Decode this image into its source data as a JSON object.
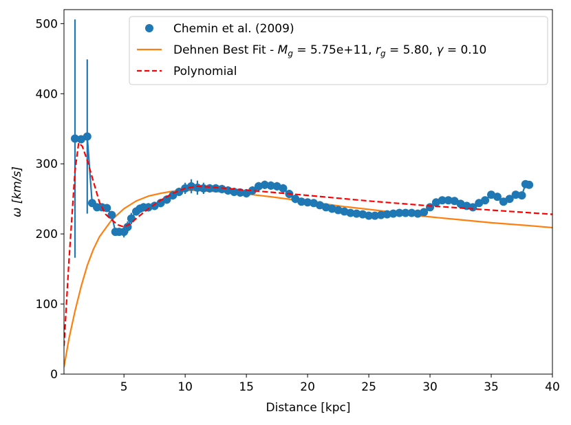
{
  "chart_data": {
    "type": "line",
    "xlabel": "Distance [kpc]",
    "ylabel_symbol": "ω",
    "ylabel_unit": "[km/s]",
    "xlim": [
      0.1,
      40
    ],
    "ylim": [
      0,
      520
    ],
    "xticks": [
      5,
      10,
      15,
      20,
      25,
      30,
      35,
      40
    ],
    "yticks": [
      0,
      100,
      200,
      300,
      400,
      500
    ],
    "legend_position": "top-right",
    "legend": [
      {
        "label": "Chemin et al. (2009)",
        "kind": "marker",
        "color": "#1f77b4"
      },
      {
        "label_prefix": "Dehnen Best Fit - ",
        "label_math": [
          {
            "text": "M",
            "sub": "g",
            "value": " = 5.75e+11"
          },
          {
            "text": "r",
            "sub": "g",
            "value": " = 5.80"
          },
          {
            "text": "γ",
            "sub": "",
            "value": " = 0.10"
          }
        ],
        "kind": "line",
        "color": "#ff7f0e"
      },
      {
        "label": "Polynomial",
        "kind": "dashed",
        "color": "#ff0000"
      }
    ],
    "series": [
      {
        "name": "Chemin et al. (2009)",
        "color": "#1f77b4",
        "x": [
          1.0,
          1.5,
          2.0,
          2.4,
          2.8,
          3.2,
          3.6,
          4.0,
          4.3,
          4.6,
          5.0,
          5.3,
          5.6,
          6.0,
          6.3,
          6.6,
          7.0,
          7.5,
          8.0,
          8.5,
          9.0,
          9.5,
          10.0,
          10.5,
          11.0,
          11.5,
          12.0,
          12.5,
          13.0,
          13.5,
          14.0,
          14.5,
          15.0,
          15.5,
          16.0,
          16.5,
          17.0,
          17.5,
          18.0,
          18.5,
          19.0,
          19.5,
          20.0,
          20.5,
          21.0,
          21.5,
          22.0,
          22.5,
          23.0,
          23.5,
          24.0,
          24.5,
          25.0,
          25.5,
          26.0,
          26.5,
          27.0,
          27.5,
          28.0,
          28.5,
          29.0,
          29.5,
          30.0,
          30.5,
          31.0,
          31.5,
          32.0,
          32.5,
          33.0,
          33.5,
          34.0,
          34.5,
          35.0,
          35.5,
          36.0,
          36.5,
          37.0,
          37.5,
          37.8,
          38.1
        ],
        "y": [
          336,
          335,
          339,
          244,
          238,
          238,
          237,
          227,
          203,
          203,
          203,
          210,
          222,
          232,
          236,
          238,
          238,
          240,
          244,
          249,
          255,
          260,
          265,
          268,
          266,
          265,
          265,
          265,
          264,
          262,
          260,
          259,
          258,
          262,
          268,
          270,
          269,
          268,
          265,
          257,
          250,
          246,
          245,
          244,
          241,
          238,
          236,
          234,
          232,
          230,
          229,
          228,
          226,
          226,
          227,
          228,
          229,
          230,
          230,
          230,
          229,
          231,
          238,
          245,
          248,
          248,
          247,
          243,
          240,
          238,
          244,
          248,
          256,
          253,
          246,
          250,
          256,
          255,
          271,
          270
        ],
        "yerr": [
          170,
          5,
          110,
          5,
          5,
          5,
          5,
          5,
          5,
          5,
          8,
          8,
          8,
          6,
          6,
          6,
          6,
          6,
          6,
          6,
          6,
          6,
          8,
          10,
          10,
          8,
          6,
          6,
          6,
          6,
          6,
          6,
          6,
          6,
          6,
          6,
          6,
          6,
          6,
          6,
          6,
          5,
          5,
          5,
          5,
          5,
          5,
          5,
          5,
          5,
          5,
          5,
          5,
          5,
          5,
          5,
          5,
          5,
          5,
          5,
          5,
          5,
          5,
          5,
          5,
          5,
          5,
          5,
          5,
          5,
          5,
          5,
          5,
          5,
          5,
          5,
          5,
          5,
          5,
          5
        ]
      },
      {
        "name": "Dehnen Best Fit",
        "color": "#ff7f0e",
        "x": [
          0.1,
          0.5,
          1,
          1.5,
          2,
          2.5,
          3,
          4,
          5,
          6,
          7,
          8,
          9,
          10,
          11,
          12,
          13,
          15,
          17,
          20,
          23,
          26,
          29,
          32,
          35,
          38,
          40
        ],
        "y": [
          10,
          50,
          90,
          125,
          155,
          178,
          196,
          220,
          236,
          247,
          254,
          258,
          261,
          262,
          262,
          261,
          260,
          257,
          253,
          246,
          239,
          233,
          226,
          221,
          216,
          212,
          209
        ]
      },
      {
        "name": "Polynomial",
        "color": "#ff0000",
        "x": [
          0.1,
          0.5,
          1.0,
          1.3,
          1.6,
          2.0,
          2.5,
          3.0,
          3.5,
          4.0,
          4.5,
          5.0,
          5.5,
          6.0,
          7.0,
          8.0,
          9.0,
          10.0,
          11.0,
          12.0,
          14.0,
          16.0,
          18.0,
          20.0,
          25.0,
          30.0,
          35.0,
          40.0
        ],
        "y": [
          40,
          160,
          290,
          330,
          325,
          305,
          275,
          245,
          228,
          220,
          213,
          210,
          214,
          222,
          236,
          248,
          258,
          265,
          268,
          267,
          264,
          261,
          258,
          255,
          247,
          240,
          234,
          228
        ]
      }
    ]
  }
}
